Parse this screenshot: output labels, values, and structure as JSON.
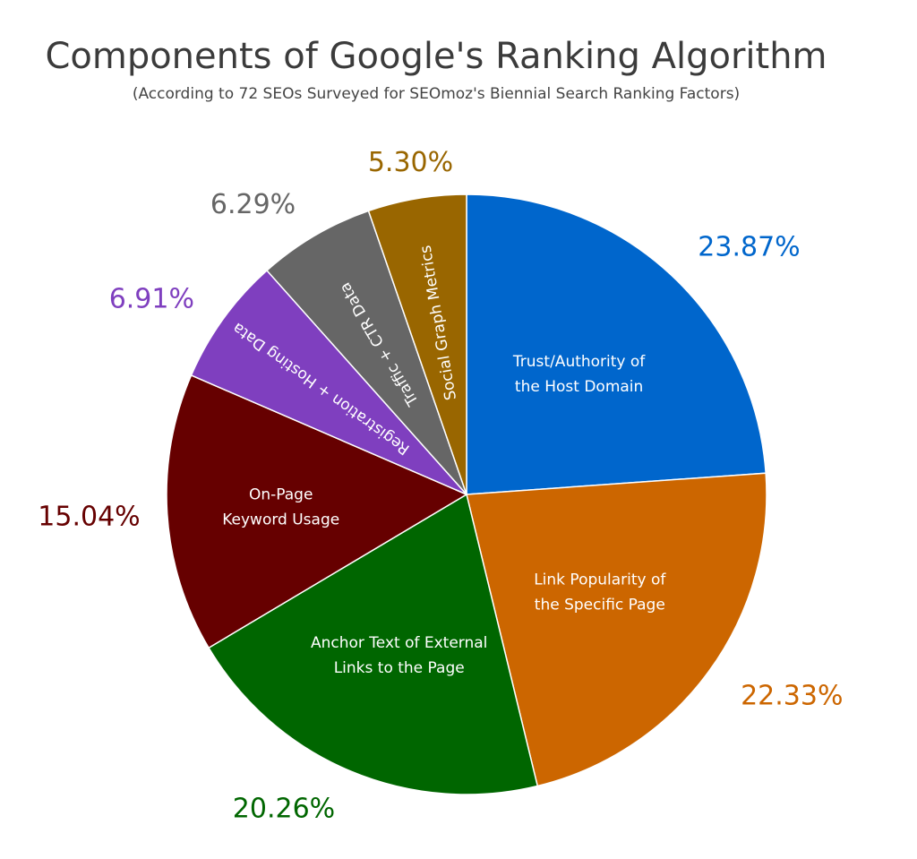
{
  "chart_data": {
    "type": "pie",
    "title": "Components of Google's Ranking Algorithm",
    "subtitle": "(According to 72 SEOs Surveyed for SEOmoz's Biennial Search Ranking Factors)",
    "slices": [
      {
        "label": "Trust/Authority of the Host Domain",
        "lines": [
          "Trust/Authority of",
          "the Host Domain"
        ],
        "value": 23.87,
        "value_text": "23.87%",
        "color": "#0066cc"
      },
      {
        "label": "Link Popularity of the Specific Page",
        "lines": [
          "Link Popularity of",
          "the Specific Page"
        ],
        "value": 22.33,
        "value_text": "22.33%",
        "color": "#cc6600"
      },
      {
        "label": "Anchor Text of External Links to the Page",
        "lines": [
          "Anchor Text of External",
          "Links to the Page"
        ],
        "value": 20.26,
        "value_text": "20.26%",
        "color": "#006600"
      },
      {
        "label": "On-Page Keyword Usage",
        "lines": [
          "On-Page",
          "Keyword Usage"
        ],
        "value": 15.04,
        "value_text": "15.04%",
        "color": "#660000"
      },
      {
        "label": "Registration + Hosting Data",
        "lines": [
          "Registration + Hosting Data"
        ],
        "value": 6.91,
        "value_text": "6.91%",
        "color": "#7f3fbf"
      },
      {
        "label": "Traffic + CTR Data",
        "lines": [
          "Traffic + CTR Data"
        ],
        "value": 6.29,
        "value_text": "6.29%",
        "color": "#666666"
      },
      {
        "label": "Social Graph Metrics",
        "lines": [
          "Social Graph Metrics"
        ],
        "value": 5.3,
        "value_text": "5.30%",
        "color": "#996600"
      }
    ],
    "legend": "none"
  }
}
